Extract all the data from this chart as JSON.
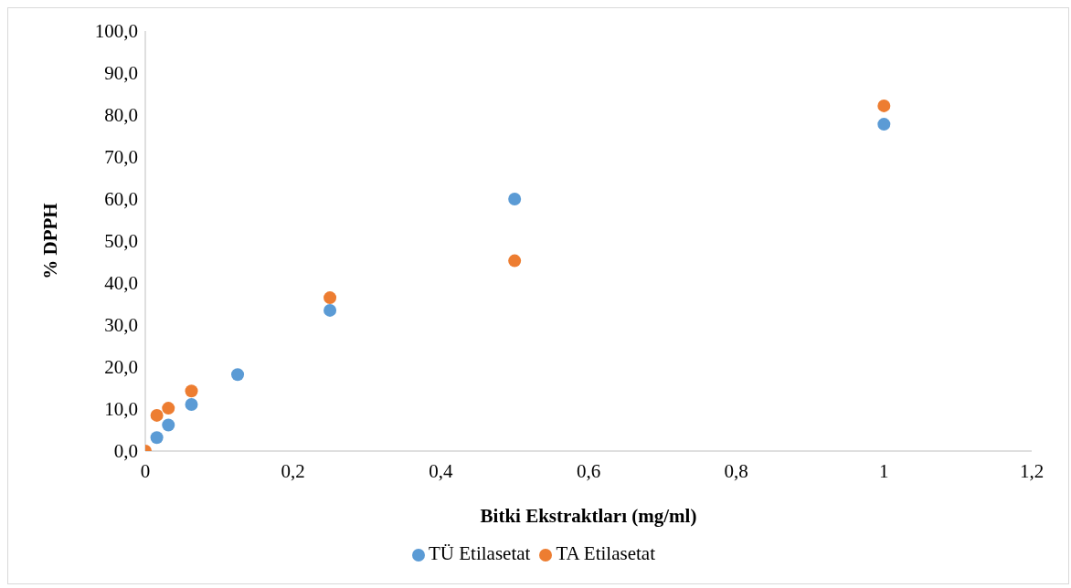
{
  "chart_data": {
    "type": "scatter",
    "xlabel": "Bitki Ekstraktları (mg/ml)",
    "ylabel": "% DPPH",
    "xlim": [
      0,
      1.2
    ],
    "ylim": [
      0,
      100
    ],
    "xticks": [
      0,
      {
        "value": 0.2,
        "label": "0,2"
      },
      {
        "value": 0.4,
        "label": "0,4"
      },
      {
        "value": 0.6,
        "label": "0,6"
      },
      {
        "value": 0.8,
        "label": "0,8"
      },
      1,
      {
        "value": 1.2,
        "label": "1,2"
      }
    ],
    "yticks": [
      {
        "value": 0,
        "label": "0,0"
      },
      {
        "value": 10,
        "label": "10,0"
      },
      {
        "value": 20,
        "label": "20,0"
      },
      {
        "value": 30,
        "label": "30,0"
      },
      {
        "value": 40,
        "label": "40,0"
      },
      {
        "value": 50,
        "label": "50,0"
      },
      {
        "value": 60,
        "label": "60,0"
      },
      {
        "value": 70,
        "label": "70,0"
      },
      {
        "value": 80,
        "label": "80,0"
      },
      {
        "value": 90,
        "label": "90,0"
      },
      {
        "value": 100,
        "label": "100,0"
      }
    ],
    "grid": false,
    "legend": "bottom",
    "marker": "circle",
    "series": [
      {
        "name": "TÜ Etilasetat",
        "color": "#5b9bd5",
        "x": [
          0.0156,
          0.03125,
          0.0625,
          0.125,
          0.25,
          0.5,
          1
        ],
        "values": [
          3.2,
          6.2,
          11.1,
          18.2,
          33.5,
          60.0,
          77.8
        ]
      },
      {
        "name": "TA Etilasetat",
        "color": "#ed7d31",
        "x": [
          0,
          0.0156,
          0.03125,
          0.0625,
          0.25,
          0.5,
          1
        ],
        "values": [
          0,
          8.5,
          10.2,
          14.3,
          36.5,
          45.3,
          82.2
        ]
      }
    ]
  }
}
